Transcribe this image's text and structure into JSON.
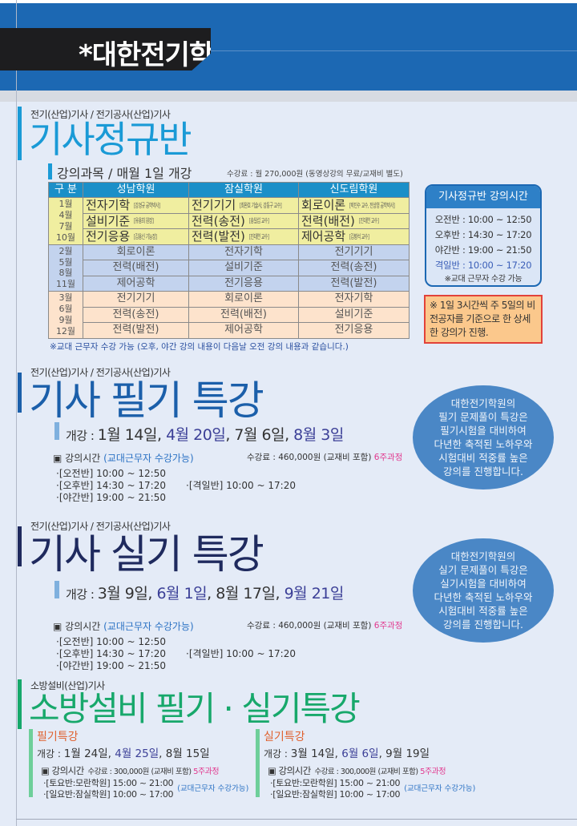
{
  "header": {
    "title": "*대한전기학원"
  },
  "regular": {
    "category": "전기(산업)기사 / 전기공사(산업)기사",
    "title": "기사정규반",
    "subtitle": "강의과목 / 매월 1일 개강",
    "fee": "수강료 : 월 270,000원 (동영상강의 무료/교재비 별도)",
    "table": {
      "headers": [
        "구 분",
        "성남학원",
        "잠실학원",
        "신도림학원"
      ],
      "groups": [
        {
          "months": "1월 4월 7월 10월",
          "rows": [
            [
              {
                "s": "전자기학",
                "t": "[강경규 공학박사]"
              },
              {
                "s": "전기기기",
                "t": "[최완호 기술사, 강동구 교수]"
              },
              {
                "s": "회로이론",
                "t": "[박민수 교수, 전상영 공학박사]"
              }
            ],
            [
              {
                "s": "설비기준",
                "t": "[유용희 원장]"
              },
              {
                "s": "전력(송전)",
                "t": "[송일섭 교수]"
              },
              {
                "s": "전력(배전)",
                "t": "[진대연 교수]"
              }
            ],
            [
              {
                "s": "전기응용",
                "t": "[김용신 기능장]"
              },
              {
                "s": "전력(발전)",
                "t": "[진대연 교수]"
              },
              {
                "s": "제어공학",
                "t": "[김병석 교수]"
              }
            ]
          ]
        },
        {
          "months": "2월 5월 8월 11월",
          "rows": [
            [
              "회로이론",
              "전자기학",
              "전기기기"
            ],
            [
              "전력(배전)",
              "설비기준",
              "전력(송전)"
            ],
            [
              "제어공학",
              "전기응용",
              "전력(발전)"
            ]
          ]
        },
        {
          "months": "3월 6월 9월 12월",
          "rows": [
            [
              "전기기기",
              "회로이론",
              "전자기학"
            ],
            [
              "전력(송전)",
              "전력(배전)",
              "설비기준"
            ],
            [
              "전력(발전)",
              "제어공학",
              "전기응용"
            ]
          ]
        }
      ]
    },
    "note": "※교대 근무자 수강 가능 (오후, 야간 강의 내용이 다음날 오전 강의 내용과 같습니다.)",
    "time_box": {
      "title": "기사정규반 강의시간",
      "rows": [
        "오전반 : 10:00 ~ 12:50",
        "오후반 : 14:30 ~ 17:20",
        "야간반 : 19:00 ~ 21:50",
        "격일반 : 10:00 ~ 17:20"
      ],
      "note": "※교대 근무자 수강 가능"
    },
    "notice": "※ 1일 3시간씩 주 5일의 비전공자를 기준으로 한 상세한 강의가 진행."
  },
  "written": {
    "category": "전기(산업)기사 / 전기공사(산업)기사",
    "title": "기사 필기 특강",
    "open_prefix": "개강 : ",
    "dates": [
      "1월 14일, ",
      "4월 20일",
      ", 7월 6일, ",
      "8월 3일"
    ],
    "time_label": "▣ 강의시간 ",
    "time_note": "(교대근무자 수강가능)",
    "fee": "수강료 : 460,000원 (교재비 포함) ",
    "course": "6주과정",
    "times": [
      "·[오전반] 10:00 ~ 12:50",
      "·[오후반] 14:30 ~ 17:20",
      "·[야간반] 19:00 ~ 21:50"
    ],
    "alt_time": "·[격일반] 10:00 ~ 17:20",
    "bubble": [
      "대한전기학원의",
      "필기 문제풀이 특강은",
      "필기시험을 대비하여",
      "다년한 축적된 노하우와",
      "시험대비 적중률 높은",
      "강의를 진행합니다."
    ]
  },
  "practical": {
    "category": "전기(산업)기사 / 전기공사(산업)기사",
    "title": "기사 실기 특강",
    "open_prefix": "개강 : ",
    "dates": [
      "3월 9일, ",
      "6월 1일",
      ", 8월 17일, ",
      "9월 21일"
    ],
    "time_label": "▣ 강의시간 ",
    "time_note": "(교대근무자 수강가능)",
    "fee": "수강료 : 460,000원 (교재비 포함) ",
    "course": "6주과정",
    "times": [
      "·[오전반] 10:00 ~ 12:50",
      "·[오후반] 14:30 ~ 17:20",
      "·[야간반] 19:00 ~ 21:50"
    ],
    "alt_time": "·[격일반] 10:00 ~ 17:20",
    "bubble": [
      "대한전기학원의",
      "실기 문제풀이 특강은",
      "실기시험을 대비하여",
      "다년한 축적된 노하우와",
      "시험대비 적중률 높은",
      "강의를 진행합니다."
    ]
  },
  "fire": {
    "category": "소방설비(산업)기사",
    "title": "소방설비 필기 · 실기특강",
    "columns": [
      {
        "title": "필기특강",
        "open_prefix": "개강 : ",
        "dates": [
          "1월 24일, ",
          "4월 25일",
          ", 8월 15일"
        ],
        "time_label": "▣ 강의시간",
        "fee": "수강료 : 300,000원 (교재비 포함) ",
        "course": "5주과정",
        "times": [
          "·[토요반:모란학원] 15:00 ~ 21:00",
          "·[일요반:잠실학원] 10:00 ~ 17:00"
        ],
        "note": "(교대근무자 수강가능)"
      },
      {
        "title": "실기특강",
        "open_prefix": "개강 : ",
        "dates": [
          "3월 14일, ",
          "6월 6일",
          ", 9월 19일"
        ],
        "time_label": "▣ 강의시간",
        "fee": "수강료 : 300,000원 (교재비 포함) ",
        "course": "5주과정",
        "times": [
          "·[토요반:모란학원] 15:00 ~ 21:00",
          "·[일요반:잠실학원] 10:00 ~ 17:00"
        ],
        "note": "(교대근무자 수강가능)"
      }
    ]
  },
  "colors": {
    "header_blue": "#1c68b3",
    "regular_title": "#1a9ad6",
    "written_title": "#1b5faa",
    "practical_title": "#1f2a5e",
    "fire_title": "#17a86b",
    "highlight_date": "#3b3f97",
    "course_pink": "#e23a8f"
  }
}
